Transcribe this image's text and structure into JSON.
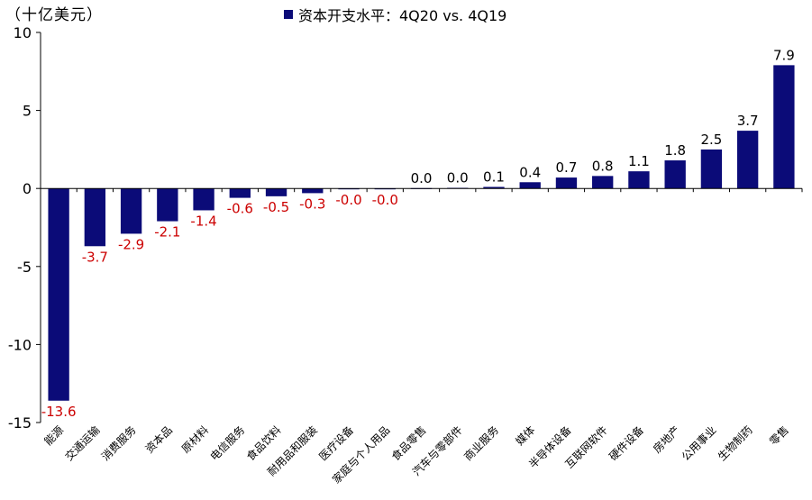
{
  "unit_label": "（十亿美元）",
  "legend_label": "资本开支水平：4Q20 vs. 4Q19",
  "colors": {
    "bar": "#0B0B78",
    "positive_label": "#000000",
    "negative_label": "#CC0000",
    "axis": "#000000"
  },
  "chart_data": {
    "type": "bar",
    "title": "",
    "xlabel": "",
    "ylabel": "（十亿美元）",
    "ylim": [
      -15,
      10
    ],
    "yticks": [
      10,
      5,
      0,
      -5,
      -10,
      -15
    ],
    "ytick_labels": [
      "10",
      "5",
      "0",
      "-5",
      "-10",
      "-15"
    ],
    "grid": false,
    "legend_position": "top-center",
    "categories": [
      "能源",
      "交通运输",
      "消费服务",
      "资本品",
      "原材料",
      "电信服务",
      "食品饮料",
      "耐用品和服装",
      "医疗设备",
      "家庭与个人用品",
      "食品零售",
      "汽车与零部件",
      "商业服务",
      "媒体",
      "半导体设备",
      "互联网软件",
      "硬件设备",
      "房地产",
      "公用事业",
      "生物制药",
      "零售"
    ],
    "series": [
      {
        "name": "资本开支水平：4Q20 vs. 4Q19",
        "values": [
          -13.6,
          -3.7,
          -2.9,
          -2.1,
          -1.4,
          -0.6,
          -0.5,
          -0.3,
          -0.04,
          -0.02,
          0.02,
          0.04,
          0.1,
          0.4,
          0.7,
          0.8,
          1.1,
          1.8,
          2.5,
          3.7,
          7.9
        ],
        "value_labels": [
          "-13.6",
          "-3.7",
          "-2.9",
          "-2.1",
          "-1.4",
          "-0.6",
          "-0.5",
          "-0.3",
          "-0.0",
          "-0.0",
          "0.0",
          "0.0",
          "0.1",
          "0.4",
          "0.7",
          "0.8",
          "1.1",
          "1.8",
          "2.5",
          "3.7",
          "7.9"
        ]
      }
    ]
  }
}
